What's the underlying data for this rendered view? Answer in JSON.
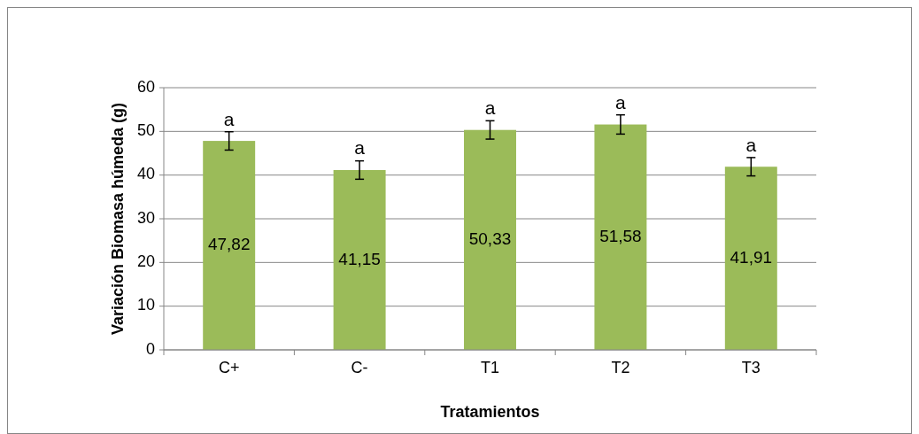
{
  "chart_data": {
    "type": "bar",
    "xlabel": "Tratamientos",
    "ylabel": "Variación Biomasa húmeda (g)",
    "categories": [
      "C+",
      "C-",
      "T1",
      "T2",
      "T3"
    ],
    "values": [
      47.82,
      41.15,
      50.33,
      51.58,
      41.91
    ],
    "value_labels": [
      "47,82",
      "41,15",
      "50,33",
      "51,58",
      "41,91"
    ],
    "errors": [
      2.1,
      2.1,
      2.1,
      2.2,
      2.1
    ],
    "color": "#9bbb59",
    "ylim": [
      0,
      60
    ],
    "yticks": [
      0,
      10,
      20,
      30,
      40,
      50,
      60
    ],
    "grid": "y",
    "annotations": [
      {
        "text": "a",
        "x": "C+",
        "y": 49.9
      },
      {
        "text": "a",
        "x": "C-",
        "y": 43.3
      },
      {
        "text": "a",
        "x": "T1",
        "y": 52.4
      },
      {
        "text": "a",
        "x": "T2",
        "y": 53.8
      },
      {
        "text": "a",
        "x": "T3",
        "y": 44.0
      }
    ]
  }
}
